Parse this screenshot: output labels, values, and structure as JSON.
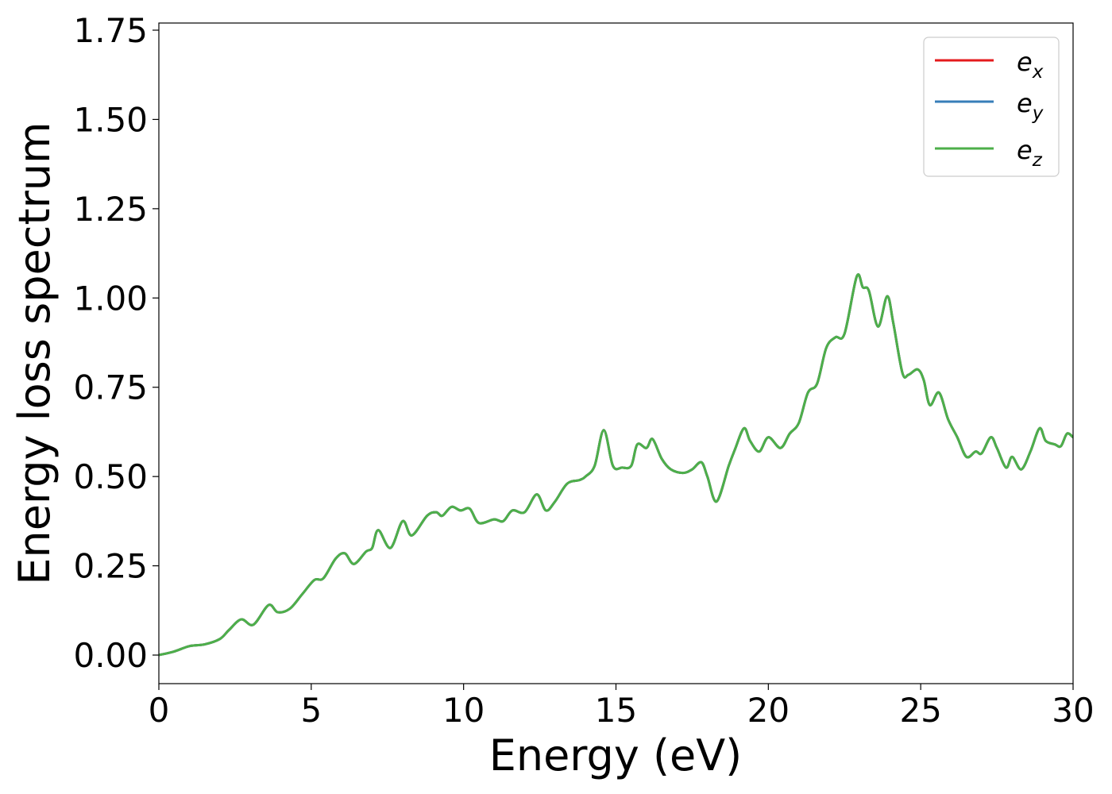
{
  "chart_data": {
    "type": "line",
    "xlabel": "Energy (eV)",
    "ylabel": "Energy loss spectrum",
    "xlim": [
      0,
      30
    ],
    "ylim": [
      -0.08,
      1.77
    ],
    "xticks": [
      "0",
      "5",
      "10",
      "15",
      "20",
      "25",
      "30"
    ],
    "yticks": [
      "0.00",
      "0.25",
      "0.50",
      "0.75",
      "1.00",
      "1.25",
      "1.50",
      "1.75"
    ],
    "grid": false,
    "legend_position": "top-right",
    "legend": [
      {
        "base": "e",
        "sub": "x"
      },
      {
        "base": "e",
        "sub": "y"
      },
      {
        "base": "e",
        "sub": "z"
      }
    ],
    "x": [
      0,
      0.5,
      1,
      1.5,
      2,
      2.3,
      2.7,
      3.1,
      3.6,
      3.9,
      4.3,
      4.7,
      5.1,
      5.4,
      5.8,
      6.1,
      6.4,
      6.8,
      7.0,
      7.2,
      7.6,
      8.0,
      8.3,
      8.8,
      9.1,
      9.3,
      9.6,
      9.9,
      10.2,
      10.5,
      11.0,
      11.3,
      11.6,
      12.0,
      12.4,
      12.7,
      13.0,
      13.4,
      13.8,
      14.0,
      14.3,
      14.6,
      14.9,
      15.2,
      15.5,
      15.7,
      16.0,
      16.2,
      16.5,
      16.8,
      17.2,
      17.5,
      17.8,
      18.0,
      18.3,
      18.7,
      18.9,
      19.2,
      19.4,
      19.7,
      20.0,
      20.4,
      20.7,
      21.0,
      21.3,
      21.6,
      21.9,
      22.2,
      22.5,
      22.9,
      23.1,
      23.3,
      23.6,
      23.9,
      24.1,
      24.4,
      24.6,
      24.9,
      25.1,
      25.3,
      25.6,
      25.9,
      26.2,
      26.5,
      26.8,
      27.0,
      27.3,
      27.5,
      27.8,
      28.0,
      28.3,
      28.6,
      28.9,
      29.1,
      29.4,
      29.6,
      29.8,
      30.0
    ],
    "series": [
      {
        "name": "e_x",
        "color": "#e41a1c",
        "values": [
          0.0,
          0.01,
          0.025,
          0.03,
          0.045,
          0.07,
          0.1,
          0.085,
          0.14,
          0.12,
          0.13,
          0.17,
          0.21,
          0.215,
          0.27,
          0.285,
          0.255,
          0.29,
          0.3,
          0.35,
          0.3,
          0.375,
          0.335,
          0.39,
          0.4,
          0.39,
          0.415,
          0.405,
          0.41,
          0.37,
          0.38,
          0.375,
          0.405,
          0.4,
          0.45,
          0.405,
          0.43,
          0.48,
          0.49,
          0.5,
          0.53,
          0.63,
          0.53,
          0.525,
          0.53,
          0.59,
          0.58,
          0.605,
          0.55,
          0.52,
          0.51,
          0.52,
          0.54,
          0.5,
          0.43,
          0.53,
          0.575,
          0.635,
          0.6,
          0.57,
          0.61,
          0.58,
          0.62,
          0.65,
          0.735,
          0.76,
          0.86,
          0.89,
          0.9,
          1.06,
          1.03,
          1.02,
          0.92,
          1.005,
          0.93,
          0.79,
          0.785,
          0.8,
          0.77,
          0.7,
          0.735,
          0.66,
          0.61,
          0.555,
          0.57,
          0.565,
          0.61,
          0.58,
          0.525,
          0.555,
          0.52,
          0.57,
          0.635,
          0.6,
          0.59,
          0.585,
          0.62,
          0.61
        ]
      },
      {
        "name": "e_y",
        "color": "#377eb8",
        "values": [
          0.0,
          0.01,
          0.025,
          0.03,
          0.045,
          0.07,
          0.1,
          0.085,
          0.14,
          0.12,
          0.13,
          0.17,
          0.21,
          0.215,
          0.27,
          0.285,
          0.255,
          0.29,
          0.3,
          0.35,
          0.3,
          0.375,
          0.335,
          0.39,
          0.4,
          0.39,
          0.415,
          0.405,
          0.41,
          0.37,
          0.38,
          0.375,
          0.405,
          0.4,
          0.45,
          0.405,
          0.43,
          0.48,
          0.49,
          0.5,
          0.53,
          0.63,
          0.53,
          0.525,
          0.53,
          0.59,
          0.58,
          0.605,
          0.55,
          0.52,
          0.51,
          0.52,
          0.54,
          0.5,
          0.43,
          0.53,
          0.575,
          0.635,
          0.6,
          0.57,
          0.61,
          0.58,
          0.62,
          0.65,
          0.735,
          0.76,
          0.86,
          0.89,
          0.9,
          1.06,
          1.03,
          1.02,
          0.92,
          1.005,
          0.93,
          0.79,
          0.785,
          0.8,
          0.77,
          0.7,
          0.735,
          0.66,
          0.61,
          0.555,
          0.57,
          0.565,
          0.61,
          0.58,
          0.525,
          0.555,
          0.52,
          0.57,
          0.635,
          0.6,
          0.59,
          0.585,
          0.62,
          0.61
        ]
      },
      {
        "name": "e_z",
        "color": "#4daf4a",
        "values": [
          0.0,
          0.01,
          0.025,
          0.03,
          0.045,
          0.07,
          0.1,
          0.085,
          0.14,
          0.12,
          0.13,
          0.17,
          0.21,
          0.215,
          0.27,
          0.285,
          0.255,
          0.29,
          0.3,
          0.35,
          0.3,
          0.375,
          0.335,
          0.39,
          0.4,
          0.39,
          0.415,
          0.405,
          0.41,
          0.37,
          0.38,
          0.375,
          0.405,
          0.4,
          0.45,
          0.405,
          0.43,
          0.48,
          0.49,
          0.5,
          0.53,
          0.63,
          0.53,
          0.525,
          0.53,
          0.59,
          0.58,
          0.605,
          0.55,
          0.52,
          0.51,
          0.52,
          0.54,
          0.5,
          0.43,
          0.53,
          0.575,
          0.635,
          0.6,
          0.57,
          0.61,
          0.58,
          0.62,
          0.65,
          0.735,
          0.76,
          0.86,
          0.89,
          0.9,
          1.06,
          1.03,
          1.02,
          0.92,
          1.005,
          0.93,
          0.79,
          0.785,
          0.8,
          0.77,
          0.7,
          0.735,
          0.66,
          0.61,
          0.555,
          0.57,
          0.565,
          0.61,
          0.58,
          0.525,
          0.555,
          0.52,
          0.57,
          0.635,
          0.6,
          0.59,
          0.585,
          0.62,
          0.61
        ]
      }
    ]
  }
}
